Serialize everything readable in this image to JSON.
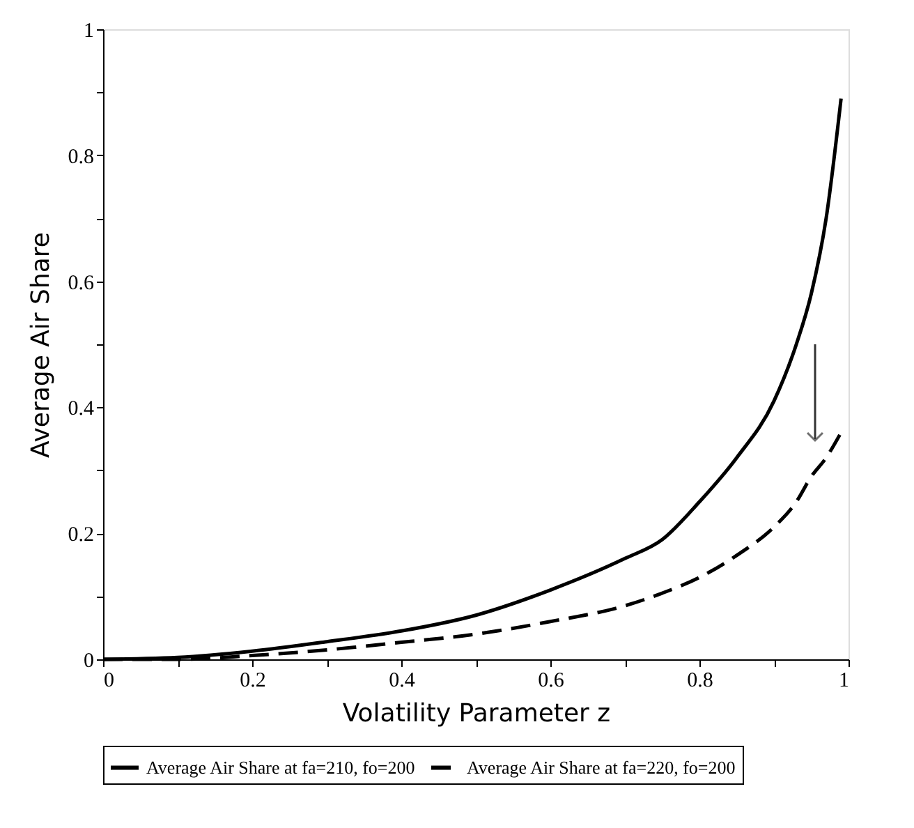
{
  "chart_data": {
    "type": "line",
    "xlabel": "Volatility Parameter z",
    "ylabel": "Average Air Share",
    "xlim": [
      0,
      1
    ],
    "ylim": [
      0,
      1
    ],
    "xticks": [
      0,
      {
        "value": 0.1,
        "label": null
      },
      0.2,
      {
        "value": 0.3,
        "label": null
      },
      0.4,
      {
        "value": 0.5,
        "label": null
      },
      0.6,
      {
        "value": 0.7,
        "label": null
      },
      0.8,
      {
        "value": 0.9,
        "label": null
      },
      1
    ],
    "yticks": [
      0,
      {
        "value": 0.1,
        "label": null
      },
      0.2,
      {
        "value": 0.3,
        "label": null
      },
      0.4,
      {
        "value": 0.5,
        "label": null
      },
      0.6,
      {
        "value": 0.7,
        "label": null
      },
      0.8,
      {
        "value": 0.9,
        "label": null
      },
      1
    ],
    "x": [
      0,
      0.1,
      0.2,
      0.3,
      0.4,
      0.5,
      0.6,
      0.7,
      0.75,
      0.8,
      0.85,
      0.9,
      0.93,
      0.95,
      0.97,
      0.99
    ],
    "series": [
      {
        "name": "Average Air Share at fa=210, fo=200",
        "color": "#000000",
        "line_style": "solid",
        "values": [
          0,
          0.003,
          0.013,
          0.028,
          0.045,
          0.07,
          0.11,
          0.16,
          0.19,
          0.25,
          0.32,
          0.41,
          0.5,
          0.58,
          0.7,
          0.89
        ]
      },
      {
        "name": "Average Air Share at fa=220, fo=200",
        "color": "#000000",
        "line_style": "dashed",
        "values": [
          0,
          0,
          0.006,
          0.015,
          0.027,
          0.04,
          0.06,
          0.085,
          0.105,
          0.13,
          0.165,
          0.21,
          0.25,
          0.29,
          0.32,
          0.36
        ]
      }
    ],
    "grid": false,
    "legend": "bottom",
    "marker": "none"
  }
}
